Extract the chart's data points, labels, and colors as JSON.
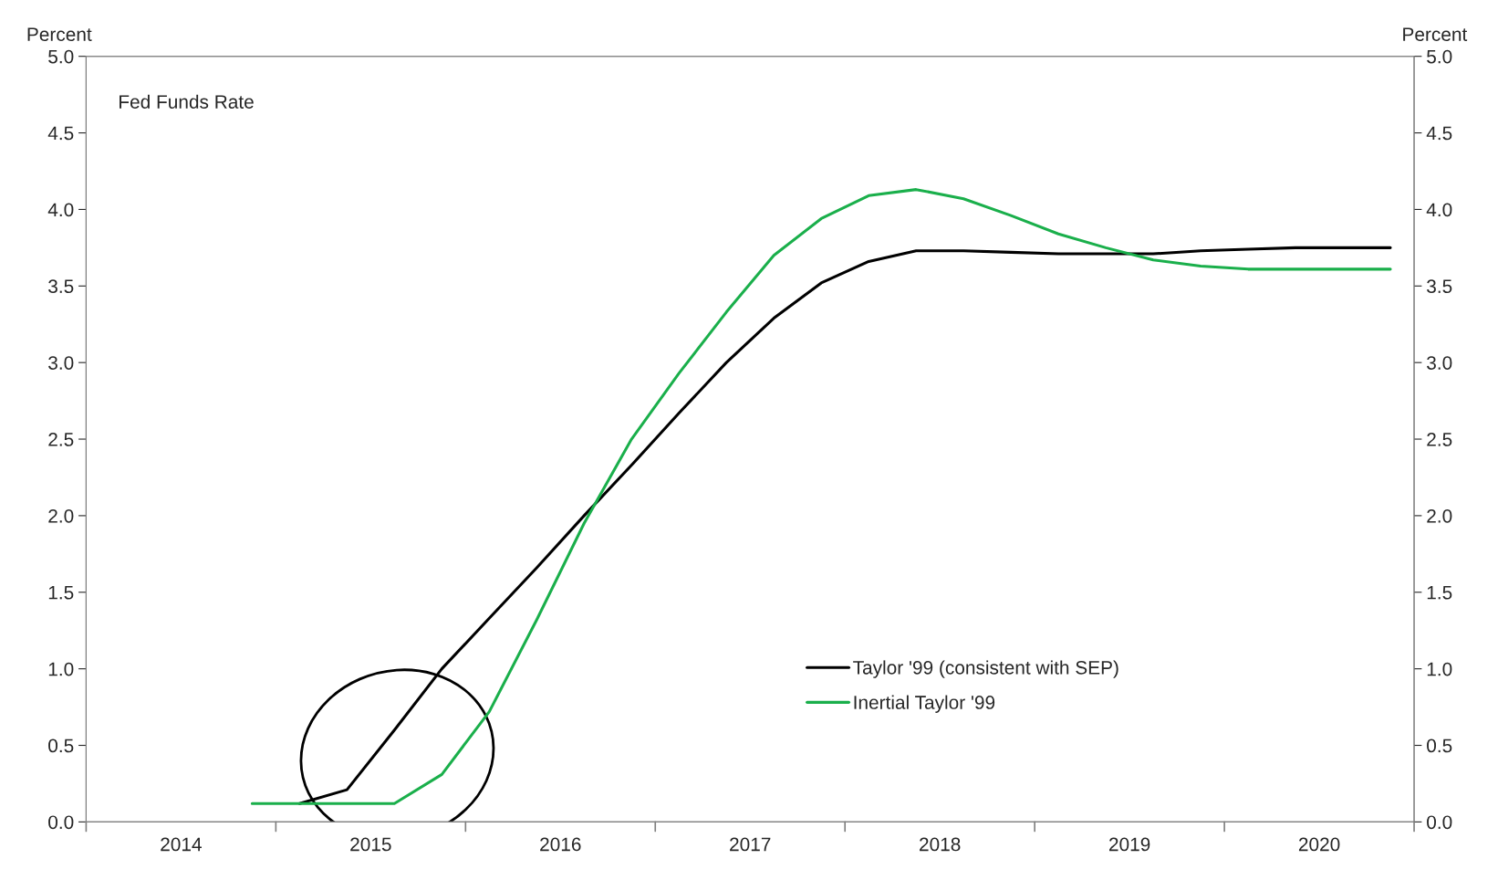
{
  "chart_data": {
    "type": "line",
    "title": "Fed Funds Rate",
    "ylabel": "Percent",
    "y2label": "Percent",
    "x": [
      2014.875,
      2015.125,
      2015.375,
      2015.625,
      2015.875,
      2016.125,
      2016.375,
      2016.625,
      2016.875,
      2017.125,
      2017.375,
      2017.625,
      2017.875,
      2018.125,
      2018.375,
      2018.625,
      2018.875,
      2019.125,
      2019.375,
      2019.625,
      2019.875,
      2020.125,
      2020.375,
      2020.625,
      2020.875
    ],
    "series": [
      {
        "name": "Taylor '99 (consistent with SEP)",
        "color": "#000000",
        "values": [
          null,
          0.12,
          0.21,
          0.6,
          1.0,
          1.33,
          1.66,
          2.0,
          2.33,
          2.67,
          3.0,
          3.29,
          3.52,
          3.66,
          3.73,
          3.73,
          3.72,
          3.71,
          3.71,
          3.71,
          3.73,
          3.74,
          3.75,
          3.75,
          3.75
        ]
      },
      {
        "name": "Inertial Taylor '99",
        "color": "#1aaf4b",
        "values": [
          0.12,
          0.12,
          0.12,
          0.12,
          0.31,
          0.72,
          1.32,
          1.95,
          2.5,
          2.93,
          3.33,
          3.7,
          3.94,
          4.09,
          4.13,
          4.07,
          3.96,
          3.84,
          3.75,
          3.67,
          3.63,
          3.61,
          3.61,
          3.61,
          3.61
        ]
      }
    ],
    "xlim": [
      2014,
      2021
    ],
    "xticks": [
      {
        "value": 2014,
        "label": null
      },
      {
        "value": 2015,
        "label": null
      },
      {
        "value": 2016,
        "label": null
      },
      {
        "value": 2017,
        "label": null
      },
      {
        "value": 2018,
        "label": null
      },
      {
        "value": 2019,
        "label": null
      },
      {
        "value": 2020,
        "label": null
      },
      {
        "value": 2021,
        "label": null
      },
      {
        "value": 2014.5,
        "label": "2014"
      },
      {
        "value": 2015.5,
        "label": "2015"
      },
      {
        "value": 2016.5,
        "label": "2016"
      },
      {
        "value": 2017.5,
        "label": "2017"
      },
      {
        "value": 2018.5,
        "label": "2018"
      },
      {
        "value": 2019.5,
        "label": "2019"
      },
      {
        "value": 2020.5,
        "label": "2020"
      }
    ],
    "ylim": [
      0,
      5
    ],
    "yticks": [
      {
        "value": 0,
        "label": "0.0"
      },
      {
        "value": 0.5,
        "label": "0.5"
      },
      {
        "value": 1,
        "label": "1.0"
      },
      {
        "value": 1.5,
        "label": "1.5"
      },
      {
        "value": 2,
        "label": "2.0"
      },
      {
        "value": 2.5,
        "label": "2.5"
      },
      {
        "value": 3,
        "label": "3.0"
      },
      {
        "value": 3.5,
        "label": "3.5"
      },
      {
        "value": 4,
        "label": "4.0"
      },
      {
        "value": 4.5,
        "label": "4.5"
      },
      {
        "value": 5,
        "label": "5.0"
      }
    ],
    "y2lim": [
      0,
      5
    ],
    "y2ticks": [
      {
        "value": 0,
        "label": "0.0"
      },
      {
        "value": 0.5,
        "label": "0.5"
      },
      {
        "value": 1,
        "label": "1.0"
      },
      {
        "value": 1.5,
        "label": "1.5"
      },
      {
        "value": 2,
        "label": "2.0"
      },
      {
        "value": 2.5,
        "label": "2.5"
      },
      {
        "value": 3,
        "label": "3.0"
      },
      {
        "value": 3.5,
        "label": "3.5"
      },
      {
        "value": 4,
        "label": "4.0"
      },
      {
        "value": 4.5,
        "label": "4.5"
      },
      {
        "value": 5,
        "label": "5.0"
      }
    ],
    "grid": false,
    "legend": "right"
  }
}
